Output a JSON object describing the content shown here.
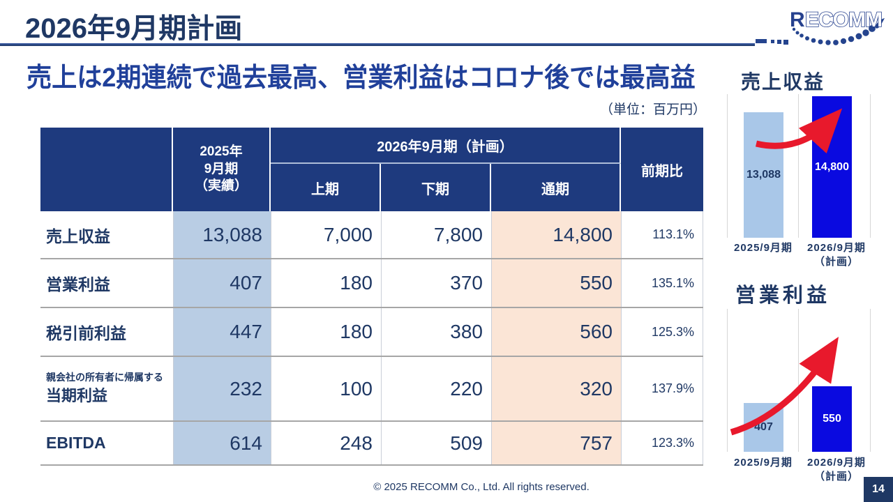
{
  "slide": {
    "title": "2026年9月期計画",
    "subtitle": "売上は2期連続で過去最高、営業利益はコロナ後では最高益",
    "unit_note": "（単位：百万円）",
    "footer": "© 2025 RECOMM Co., Ltd. All rights reserved.",
    "page_number": "14",
    "logo": {
      "r": "R",
      "rest": "ECOMM"
    }
  },
  "colors": {
    "navy_text": "#1f3864",
    "header_bg": "#1e3a7e",
    "subtitle_blue": "#20409a",
    "actual_column_bg": "#b9cde4",
    "full_year_column_bg": "#fbe5d6",
    "bar_light_blue": "#a9c7e8",
    "bar_bright_blue": "#0a0ae0",
    "arrow_red": "#e8192c"
  },
  "table": {
    "header": {
      "actual_line1": "2025年",
      "actual_line2": "9月期",
      "actual_line3": "（実績）",
      "plan_group": "2026年9月期（計画）",
      "h1": "上期",
      "h2": "下期",
      "full": "通期",
      "yoy": "前期比"
    },
    "rows": [
      {
        "note": "",
        "label": "売上収益",
        "actual": "13,088",
        "h1": "7,000",
        "h2": "7,800",
        "full": "14,800",
        "yoy": "113.1%"
      },
      {
        "note": "",
        "label": "営業利益",
        "actual": "407",
        "h1": "180",
        "h2": "370",
        "full": "550",
        "yoy": "135.1%"
      },
      {
        "note": "",
        "label": "税引前利益",
        "actual": "447",
        "h1": "180",
        "h2": "380",
        "full": "560",
        "yoy": "125.3%"
      },
      {
        "note": "親会社の所有者に帰属する",
        "label": "当期利益",
        "actual": "232",
        "h1": "100",
        "h2": "220",
        "full": "320",
        "yoy": "137.9%"
      },
      {
        "note": "",
        "label": "EBITDA",
        "actual": "614",
        "h1": "248",
        "h2": "509",
        "full": "757",
        "yoy": "123.3%"
      }
    ]
  },
  "chart_data": [
    {
      "type": "bar",
      "title": "売上収益",
      "categories": [
        "2025/9月期",
        "2026/9月期"
      ],
      "category2_note": "（計画）",
      "values": [
        13088,
        14800
      ],
      "labels": [
        "13,088",
        "14,800"
      ],
      "ylim": [
        0,
        15000
      ],
      "colors": [
        "#a9c7e8",
        "#0a0ae0"
      ],
      "grid": "vertical separators only",
      "annotation": "red upward curved arrow"
    },
    {
      "type": "bar",
      "title": "営業利益",
      "categories": [
        "2025/9月期",
        "2026/9月期"
      ],
      "category2_note": "（計画）",
      "values": [
        407,
        550
      ],
      "labels": [
        "407",
        "550"
      ],
      "ylim": [
        0,
        1200
      ],
      "colors": [
        "#a9c7e8",
        "#0a0ae0"
      ],
      "grid": "vertical separators only",
      "annotation": "red upward curved arrow"
    }
  ]
}
